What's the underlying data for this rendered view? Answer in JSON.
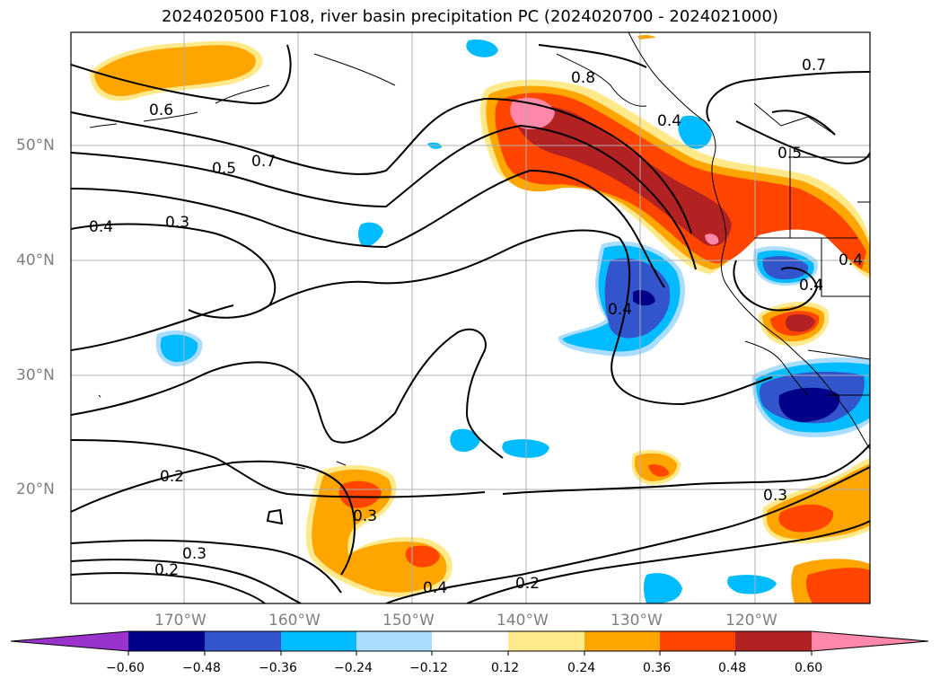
{
  "title": "2024020500 F108, river basin precipitation PC (2024020700 - 2024021000)",
  "map": {
    "lat_labels": [
      "50°N",
      "40°N",
      "30°N",
      "20°N"
    ],
    "lon_labels": [
      "170°W",
      "160°W",
      "150°W",
      "140°W",
      "130°W",
      "120°W"
    ],
    "contour_labels": [
      "0.6",
      "0.7",
      "0.5",
      "0.4",
      "0.3",
      "0.2",
      "0.3",
      "0.2",
      "0.8",
      "0.7",
      "0.5",
      "0.4",
      "0.4",
      "0.4",
      "0.3",
      "0.4",
      "0.2",
      "0.3",
      "0.4"
    ],
    "colors": {
      "very_neg": "#9933cc",
      "neg_060": "#000088",
      "neg_048": "#3355cc",
      "neg_036": "#00bbff",
      "neg_024": "#aaddff",
      "pos_012": "#ffe98a",
      "pos_024": "#ffa500",
      "pos_036": "#ff4500",
      "pos_048": "#b22222",
      "pos_060": "#ff88aa"
    }
  },
  "colorbar": {
    "ticks": [
      "−0.60",
      "−0.48",
      "−0.36",
      "−0.24",
      "−0.12",
      "0.12",
      "0.24",
      "0.36",
      "0.48",
      "0.60"
    ]
  }
}
